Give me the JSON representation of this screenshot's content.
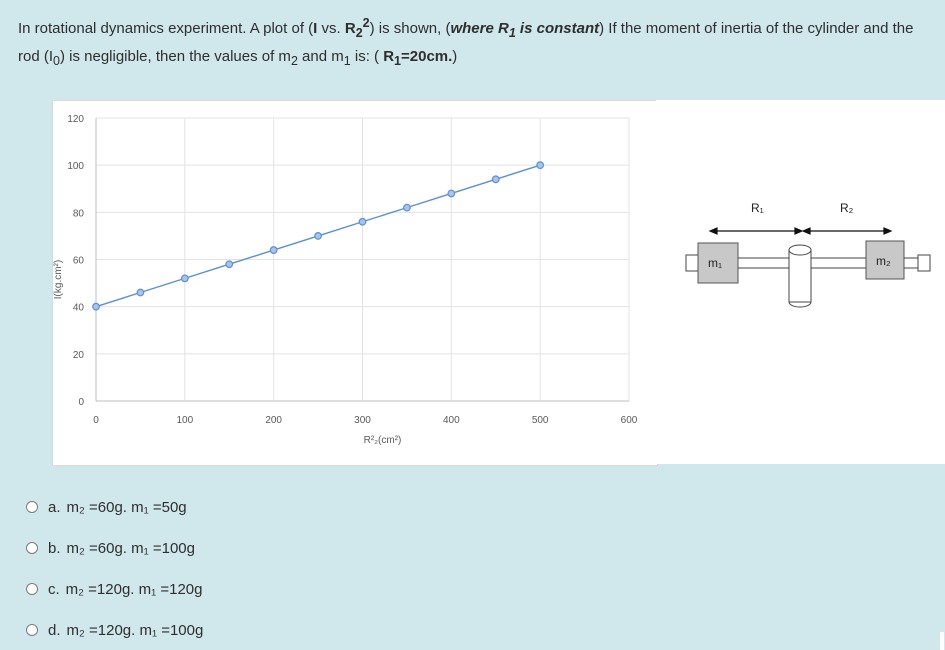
{
  "question": {
    "part1": "In rotational dynamics experiment. A plot of (",
    "bold_I": "I",
    "part2": " vs. ",
    "bold_R2": "R",
    "r2_sub": "2",
    "r2_sup": "2",
    "part3": ") is shown, (",
    "where_text": "where R",
    "where_sub": "1",
    "where_text2": " is constant",
    "part4": ") If the moment of inertia of the cylinder and the rod (I",
    "i0_sub": "0",
    "part5": ") is negligible, then the values of m",
    "m2_sub": "2",
    "part6": " and m",
    "m1_sub": "1",
    "part7": " is: ( ",
    "r1_bold": "R",
    "r1_sub": "1",
    "r1_value": "=20cm.",
    "part8": ")"
  },
  "chart_data": {
    "type": "scatter",
    "title": "",
    "xlabel": "R²₂(cm²)",
    "ylabel": "I(kg.cm²)",
    "xlim": [
      0,
      600
    ],
    "ylim": [
      0,
      120
    ],
    "x_ticks": [
      "0",
      "100",
      "200",
      "300",
      "400",
      "500",
      "600"
    ],
    "y_ticks": [
      "0",
      "20",
      "40",
      "60",
      "80",
      "100",
      "120"
    ],
    "grid": true,
    "series": [
      {
        "x": [
          0,
          50,
          100,
          150,
          200,
          250,
          300,
          350,
          400,
          450,
          500
        ],
        "y": [
          40,
          46,
          52,
          58,
          64,
          70,
          76,
          82,
          88,
          94,
          100
        ],
        "color": "#5b8fd6",
        "style": "line-with-markers"
      }
    ]
  },
  "diagram": {
    "r1_label": "R₁",
    "r2_label": "R₂",
    "m1_label": "m₁",
    "m2_label": "m₂"
  },
  "options": [
    {
      "letter": "a.",
      "text": "m₂ =60g. m₁ =50g"
    },
    {
      "letter": "b.",
      "text": "m₂ =60g. m₁ =100g"
    },
    {
      "letter": "c.",
      "text": "m₂ =120g. m₁ =120g"
    },
    {
      "letter": "d.",
      "text": "m₂ =120g. m₁ =100g"
    }
  ]
}
